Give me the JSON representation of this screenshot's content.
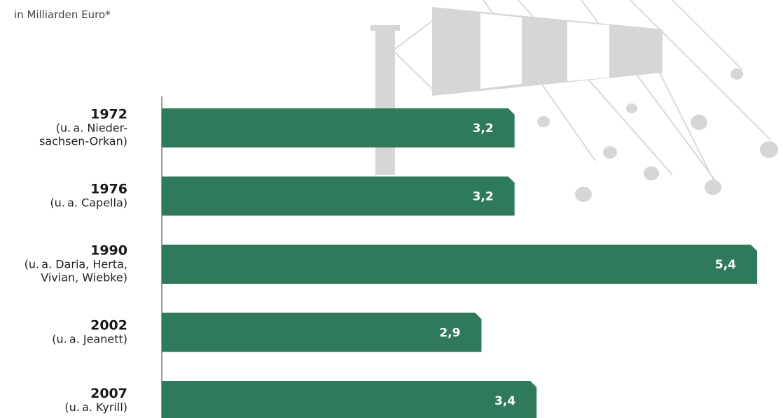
{
  "chart_data": {
    "type": "bar",
    "orientation": "horizontal",
    "title": "",
    "subtitle": "in Milliarden Euro*",
    "categories": [
      {
        "year": "1972",
        "desc": [
          "(u. a. Nieder-",
          "sachsen-Orkan)"
        ]
      },
      {
        "year": "1976",
        "desc": [
          "(u. a. Capella)"
        ]
      },
      {
        "year": "1990",
        "desc": [
          "(u. a. Daria, Herta,",
          "Vivian, Wiebke)"
        ]
      },
      {
        "year": "2002",
        "desc": [
          "(u. a. Jeanett)"
        ]
      },
      {
        "year": "2007",
        "desc": [
          "(u. a. Kyrill)"
        ]
      }
    ],
    "values": [
      3.2,
      3.2,
      5.4,
      2.9,
      3.4
    ],
    "value_labels": [
      "3,2",
      "3,2",
      "5,4",
      "2,9",
      "3,4"
    ],
    "xlim": [
      0,
      5.4
    ],
    "grid": false,
    "legend": "none",
    "colors": {
      "bar": "#2f7a5b",
      "value_text": "#ffffff",
      "decoration": "#d6d6d6"
    }
  }
}
